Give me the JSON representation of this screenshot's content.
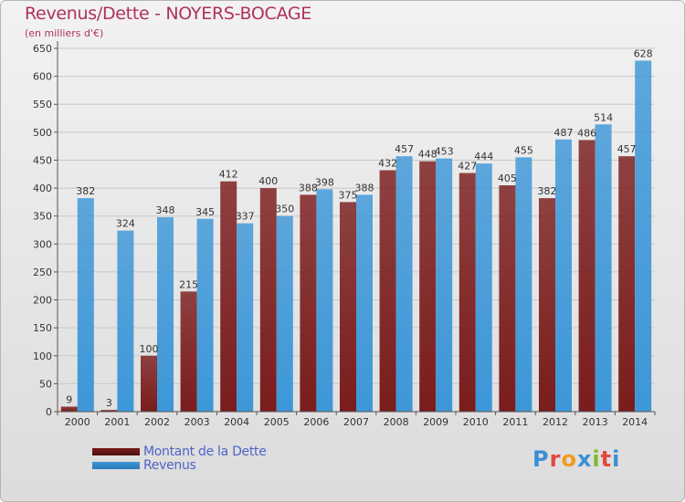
{
  "title": "Revenus/Dette - NOYERS-BOCAGE",
  "subtitle": "(en milliers d'€)",
  "logo_text": "Proxiti",
  "colors": {
    "debt": "#7a1c1c",
    "revenue": "#3d97d8",
    "title": "#b03060",
    "legend_text": "#4e64c8"
  },
  "chart_data": {
    "type": "bar",
    "categories": [
      "2000",
      "2001",
      "2002",
      "2003",
      "2004",
      "2005",
      "2006",
      "2007",
      "2008",
      "2009",
      "2010",
      "2011",
      "2012",
      "2013",
      "2014"
    ],
    "series": [
      {
        "name": "Montant de la Dette",
        "values": [
          9,
          3,
          100,
          215,
          412,
          400,
          388,
          375,
          432,
          448,
          427,
          405,
          382,
          486,
          457
        ]
      },
      {
        "name": "Revenus",
        "values": [
          382,
          324,
          348,
          345,
          337,
          350,
          398,
          388,
          457,
          453,
          444,
          455,
          487,
          514,
          628
        ]
      }
    ],
    "yticks": [
      0,
      50,
      100,
      150,
      200,
      250,
      300,
      350,
      400,
      450,
      500,
      550,
      600,
      650
    ],
    "ylim": [
      0,
      650
    ],
    "grid": true,
    "legend_position": "bottom-left"
  }
}
